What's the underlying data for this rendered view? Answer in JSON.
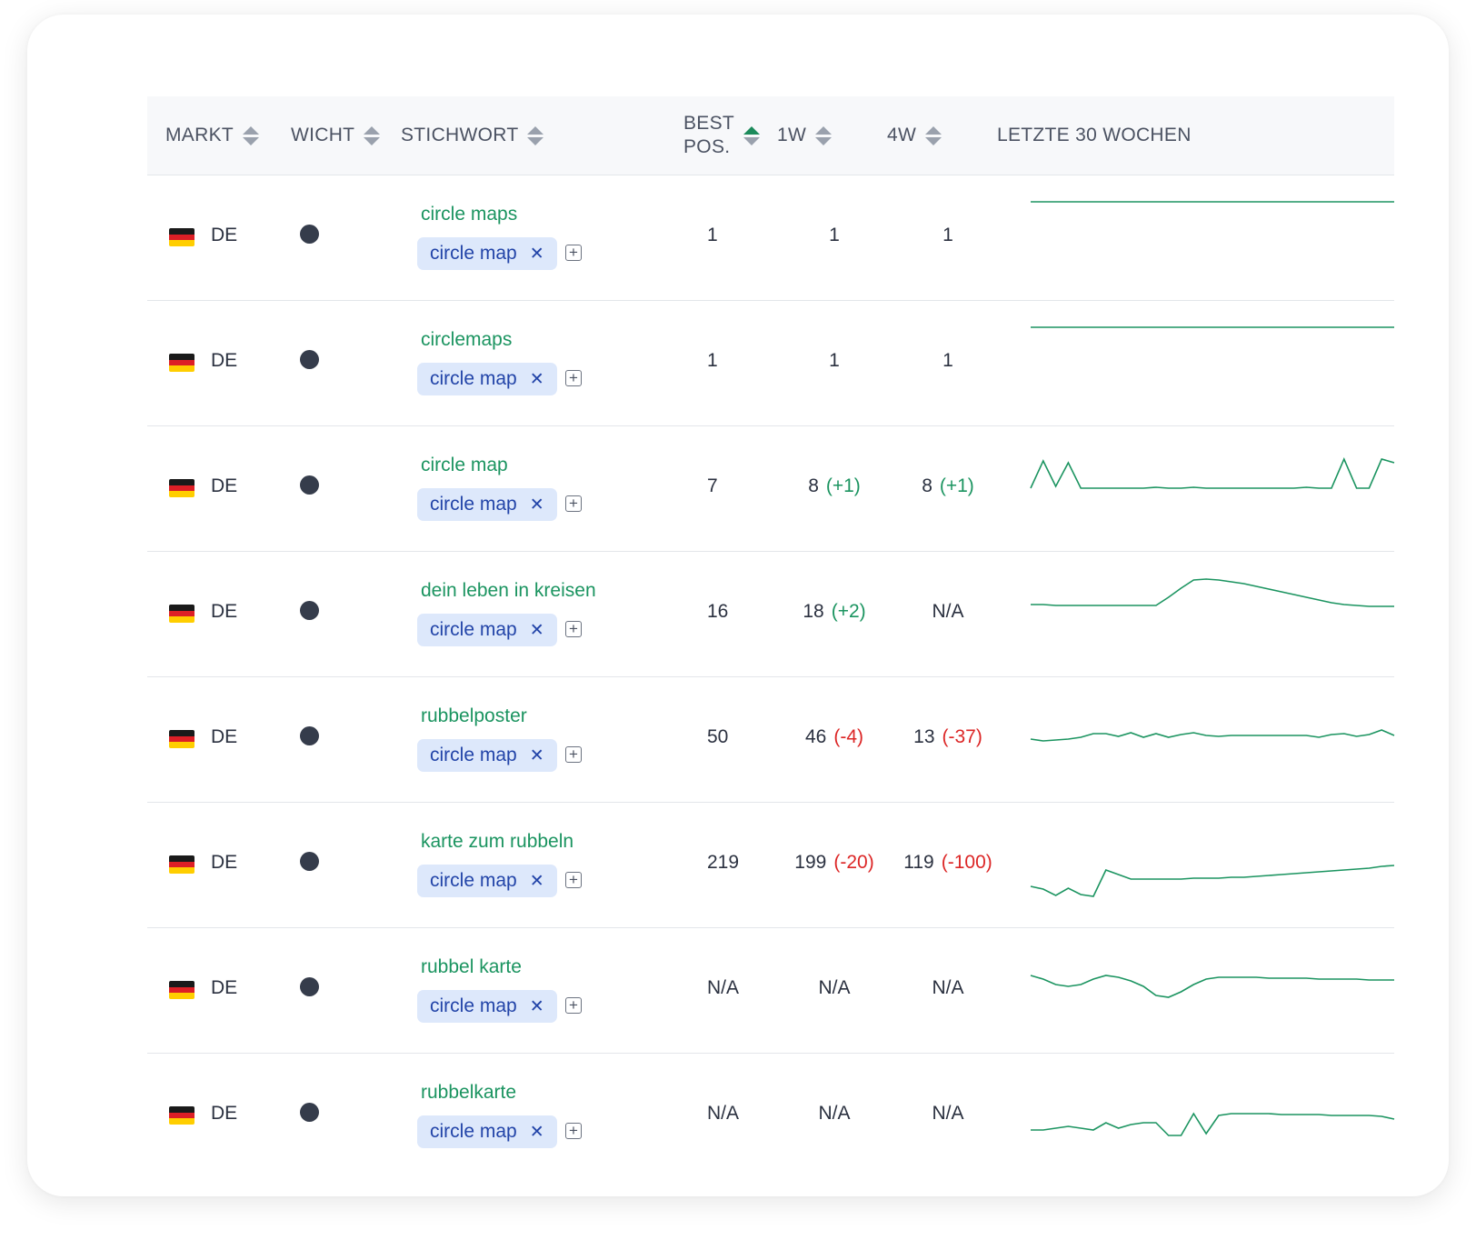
{
  "header": {
    "markt": "MARKT",
    "wicht": "WICHT",
    "stichwort": "STICHWORT",
    "best_line1": "BEST",
    "best_line2": "POS.",
    "w1": "1W",
    "w4": "4W",
    "letzte": "LETZTE 30 WOCHEN"
  },
  "colors": {
    "accent": "#1b9460",
    "negative": "#dc2626",
    "tag_bg": "#dde8fb",
    "tag_text": "#2244a8"
  },
  "rows": [
    {
      "market": "DE",
      "keyword": "circle maps",
      "tag": "circle map",
      "best": "1",
      "w1": "1",
      "w1_delta": "",
      "w4": "1",
      "w4_delta": "",
      "trend": [
        1,
        1,
        1,
        1,
        1,
        1,
        1,
        1,
        1,
        1,
        1,
        1,
        1,
        1,
        1,
        1,
        1,
        1,
        1,
        1,
        1,
        1,
        1,
        1,
        1,
        1,
        1,
        1,
        1,
        1
      ]
    },
    {
      "market": "DE",
      "keyword": "circlemaps",
      "tag": "circle map",
      "best": "1",
      "w1": "1",
      "w1_delta": "",
      "w4": "1",
      "w4_delta": "",
      "trend": [
        1,
        1,
        1,
        1,
        1,
        1,
        1,
        1,
        1,
        1,
        1,
        1,
        1,
        1,
        1,
        1,
        1,
        1,
        1,
        1,
        1,
        1,
        1,
        1,
        1,
        1,
        1,
        1,
        1,
        1
      ]
    },
    {
      "market": "DE",
      "keyword": "circle map",
      "tag": "circle map",
      "best": "7",
      "w1": "8",
      "w1_delta": "(+1)",
      "w4": "8",
      "w4_delta": "(+1)",
      "trend": [
        40,
        10,
        38,
        12,
        40,
        40,
        40,
        40,
        40,
        40,
        39,
        40,
        40,
        39,
        40,
        40,
        40,
        40,
        40,
        40,
        40,
        40,
        39,
        40,
        40,
        8,
        40,
        40,
        8,
        12
      ]
    },
    {
      "market": "DE",
      "keyword": "dein leben in kreisen",
      "tag": "circle map",
      "best": "16",
      "w1": "18",
      "w1_delta": "(+2)",
      "w4": "N/A",
      "w4_delta": "",
      "trend": [
        30,
        30,
        31,
        31,
        31,
        31,
        31,
        31,
        31,
        31,
        31,
        22,
        12,
        3,
        2,
        3,
        5,
        7,
        10,
        13,
        16,
        19,
        22,
        25,
        28,
        30,
        31,
        32,
        32,
        32
      ]
    },
    {
      "market": "DE",
      "keyword": "rubbelposter",
      "tag": "circle map",
      "best": "50",
      "w1": "46",
      "w1_delta": "(-4)",
      "w4": "13",
      "w4_delta": "(-37)",
      "trend": [
        40,
        42,
        41,
        40,
        38,
        34,
        34,
        37,
        33,
        38,
        34,
        38,
        35,
        33,
        36,
        37,
        36,
        36,
        36,
        36,
        36,
        36,
        36,
        38,
        35,
        34,
        37,
        35,
        30,
        36
      ]
    },
    {
      "market": "DE",
      "keyword": "karte zum rubbeln",
      "tag": "circle map",
      "best": "219",
      "w1": "199",
      "w1_delta": "(-20)",
      "w4": "119",
      "w4_delta": "(-100)",
      "trend": [
        64,
        67,
        74,
        66,
        73,
        75,
        46,
        51,
        56,
        56,
        56,
        56,
        56,
        55,
        55,
        55,
        54,
        54,
        53,
        52,
        51,
        50,
        49,
        48,
        47,
        46,
        45,
        44,
        42,
        41
      ]
    },
    {
      "market": "DE",
      "keyword": "rubbel karte",
      "tag": "circle map",
      "best": "N/A",
      "w1": "N/A",
      "w1_delta": "",
      "w4": "N/A",
      "w4_delta": "",
      "trend": [
        24,
        28,
        34,
        36,
        34,
        28,
        24,
        26,
        30,
        36,
        46,
        48,
        42,
        34,
        28,
        26,
        26,
        26,
        26,
        27,
        27,
        27,
        27,
        28,
        28,
        28,
        28,
        29,
        29,
        29
      ]
    },
    {
      "market": "DE",
      "keyword": "rubbelkarte",
      "tag": "circle map",
      "best": "N/A",
      "w1": "N/A",
      "w1_delta": "",
      "w4": "N/A",
      "w4_delta": "",
      "trend": [
        56,
        56,
        54,
        52,
        54,
        56,
        48,
        54,
        50,
        48,
        48,
        62,
        62,
        38,
        60,
        40,
        38,
        38,
        38,
        38,
        39,
        39,
        39,
        39,
        40,
        40,
        40,
        40,
        41,
        44
      ]
    }
  ]
}
